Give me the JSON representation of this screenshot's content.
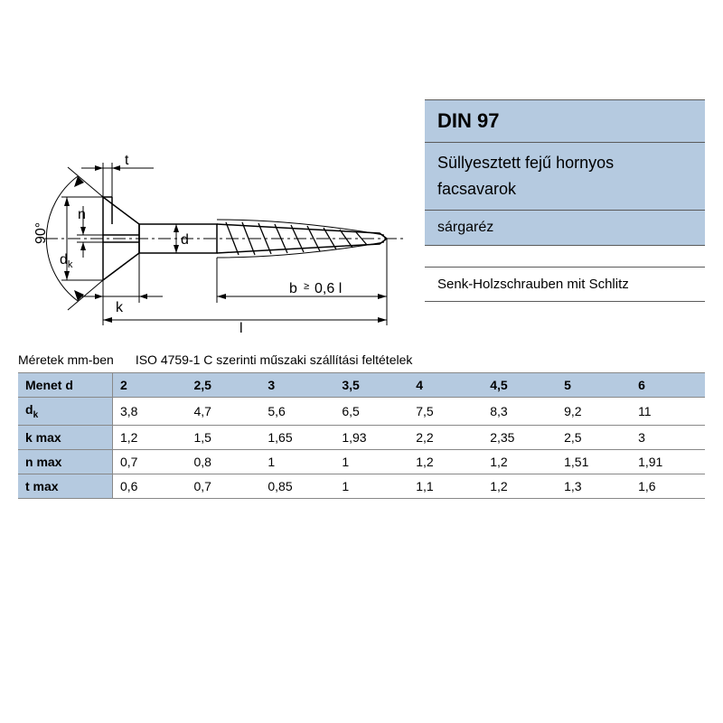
{
  "colors": {
    "blue_bg": "#b5cae0",
    "border": "#888888",
    "text": "#000000",
    "background": "#ffffff"
  },
  "info": {
    "standard": "DIN 97",
    "subtitle_line1": "Süllyesztett fejű hornyos",
    "subtitle_line2": "facsavarok",
    "material": "sárgaréz",
    "german": "Senk-Holzschrauben mit Schlitz"
  },
  "diagram": {
    "angle_label": "90°",
    "dims": {
      "t": "t",
      "n": "n",
      "dk": "d",
      "dk_sub": "k",
      "d": "d",
      "k": "k",
      "l": "l",
      "b": "b",
      "b_coef": "0,6 l",
      "b_sym": "≥"
    }
  },
  "caption": {
    "units": "Méretek mm-ben",
    "iso": "ISO 4759-1 C szerinti műszaki szállítási feltételek"
  },
  "table": {
    "header_label": "Menet d",
    "columns": [
      "2",
      "2,5",
      "3",
      "3,5",
      "4",
      "4,5",
      "5",
      "6"
    ],
    "rows": [
      {
        "label_html": "d<span class=\"sub\">k</span>",
        "cells": [
          "3,8",
          "4,7",
          "5,6",
          "6,5",
          "7,5",
          "8,3",
          "9,2",
          "11"
        ]
      },
      {
        "label_html": "k max",
        "cells": [
          "1,2",
          "1,5",
          "1,65",
          "1,93",
          "2,2",
          "2,35",
          "2,5",
          "3"
        ]
      },
      {
        "label_html": "n max",
        "cells": [
          "0,7",
          "0,8",
          "1",
          "1",
          "1,2",
          "1,2",
          "1,51",
          "1,91"
        ]
      },
      {
        "label_html": "t max",
        "cells": [
          "0,6",
          "0,7",
          "0,85",
          "1",
          "1,1",
          "1,2",
          "1,3",
          "1,6"
        ]
      }
    ]
  }
}
